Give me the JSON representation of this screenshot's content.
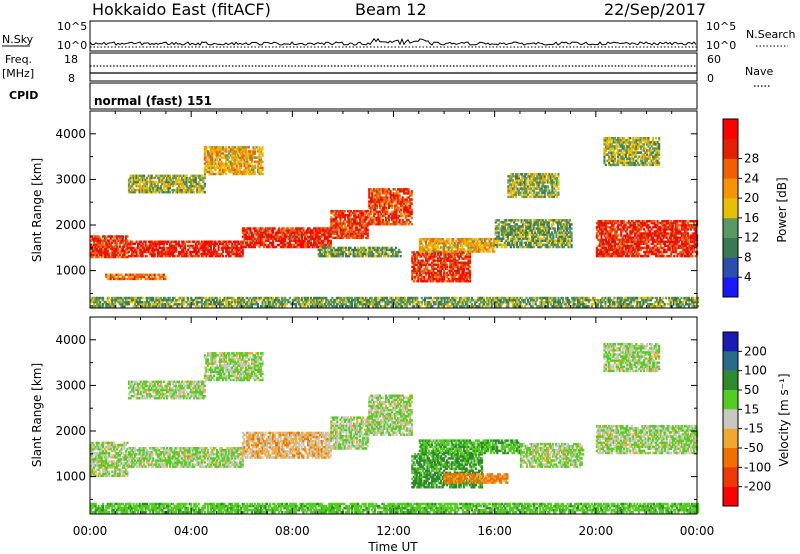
{
  "header": {
    "station": "Hokkaido East (fitACF)",
    "beam": "Beam 12",
    "date": "22/Sep/2017"
  },
  "top_panels": {
    "nsky_label": "N.Sky",
    "nsearch_label": "N.Search",
    "noise_ticks_left": [
      "10^5",
      "10^0"
    ],
    "noise_ticks_right": [
      "10^5",
      "10^0"
    ],
    "freq_label": "Freq.",
    "freq_unit": "[MHz]",
    "freq_ticks": [
      "18",
      "8"
    ],
    "nave_label": "Nave",
    "nave_ticks": [
      "60",
      "0"
    ],
    "cpid_label": "CPID",
    "cpid_value": "normal (fast) 151"
  },
  "colors": {
    "power": [
      "#1818ff",
      "#2a4fb0",
      "#3b7a50",
      "#5a9a62",
      "#e8c000",
      "#f59300",
      "#f06000",
      "#e42000",
      "#ff0000"
    ],
    "velocity": [
      "#1a1ab5",
      "#2a6a8a",
      "#2d8a2d",
      "#55cc22",
      "#c8c8c0",
      "#f0a830",
      "#f07000",
      "#f03800",
      "#ff0000"
    ]
  },
  "chart_data": [
    {
      "type": "heatmap",
      "name": "Power",
      "xlabel": "",
      "ylabel": "Slant Range [km]",
      "x_ticks": [
        "00:00",
        "04:00",
        "08:00",
        "12:00",
        "16:00",
        "20:00",
        "00:00"
      ],
      "x_range_hours": [
        0,
        24
      ],
      "ylim": [
        180,
        4500
      ],
      "y_ticks": [
        1000,
        2000,
        3000,
        4000
      ],
      "colorbar_label": "Power [dB]",
      "colorbar_ticks": [
        "4",
        "8",
        "12",
        "16",
        "20",
        "24",
        "28"
      ],
      "colorbar_range": [
        0,
        32
      ],
      "regions": [
        {
          "t0": 0.0,
          "t1": 1.5,
          "r0": 1280,
          "r1": 1750,
          "value": 26
        },
        {
          "t0": 0.6,
          "t1": 3.0,
          "r0": 800,
          "r1": 900,
          "value": 22
        },
        {
          "t0": 1.5,
          "t1": 6.0,
          "r0": 1300,
          "r1": 1650,
          "value": 28
        },
        {
          "t0": 6.0,
          "t1": 9.5,
          "r0": 1500,
          "r1": 1950,
          "value": 27
        },
        {
          "t0": 9.5,
          "t1": 11.0,
          "r0": 1700,
          "r1": 2300,
          "value": 26
        },
        {
          "t0": 11.0,
          "t1": 12.7,
          "r0": 2000,
          "r1": 2800,
          "value": 25
        },
        {
          "t0": 1.5,
          "t1": 4.5,
          "r0": 2700,
          "r1": 3100,
          "value": 14
        },
        {
          "t0": 4.5,
          "t1": 6.8,
          "r0": 3100,
          "r1": 3700,
          "value": 18
        },
        {
          "t0": 9.0,
          "t1": 12.3,
          "r0": 1300,
          "r1": 1500,
          "value": 12
        },
        {
          "t0": 12.7,
          "t1": 15.0,
          "r0": 750,
          "r1": 1400,
          "value": 26
        },
        {
          "t0": 13.0,
          "t1": 16.0,
          "r0": 1400,
          "r1": 1700,
          "value": 18
        },
        {
          "t0": 16.0,
          "t1": 19.0,
          "r0": 1500,
          "r1": 2100,
          "value": 12
        },
        {
          "t0": 16.5,
          "t1": 18.5,
          "r0": 2600,
          "r1": 3100,
          "value": 14
        },
        {
          "t0": 20.0,
          "t1": 24.0,
          "r0": 1300,
          "r1": 2100,
          "value": 27
        },
        {
          "t0": 20.3,
          "t1": 22.5,
          "r0": 3300,
          "r1": 3900,
          "value": 14
        },
        {
          "t0": 0.0,
          "t1": 24.0,
          "r0": 200,
          "r1": 420,
          "value": 12
        }
      ]
    },
    {
      "type": "heatmap",
      "name": "Velocity",
      "xlabel": "Time UT",
      "ylabel": "Slant Range [km]",
      "x_ticks": [
        "00:00",
        "04:00",
        "08:00",
        "12:00",
        "16:00",
        "20:00",
        "00:00"
      ],
      "x_range_hours": [
        0,
        24
      ],
      "ylim": [
        180,
        4500
      ],
      "y_ticks": [
        1000,
        2000,
        3000,
        4000
      ],
      "colorbar_label": "Velocity [m s⁻¹]",
      "colorbar_ticks": [
        "200",
        "100",
        "50",
        "15",
        "-15",
        "-50",
        "-100",
        "-200"
      ],
      "regions": [
        {
          "t0": 0.0,
          "t1": 1.5,
          "r0": 1000,
          "r1": 1750,
          "value": 0
        },
        {
          "t0": 1.5,
          "t1": 6.0,
          "r0": 1200,
          "r1": 1650,
          "value": 0
        },
        {
          "t0": 6.0,
          "t1": 9.5,
          "r0": 1400,
          "r1": 1950,
          "value": -20
        },
        {
          "t0": 9.5,
          "t1": 11.0,
          "r0": 1600,
          "r1": 2300,
          "value": 0
        },
        {
          "t0": 11.0,
          "t1": 12.7,
          "r0": 1900,
          "r1": 2800,
          "value": 0
        },
        {
          "t0": 1.5,
          "t1": 4.5,
          "r0": 2700,
          "r1": 3100,
          "value": 0
        },
        {
          "t0": 4.5,
          "t1": 6.8,
          "r0": 3100,
          "r1": 3700,
          "value": 0
        },
        {
          "t0": 12.7,
          "t1": 15.5,
          "r0": 750,
          "r1": 1500,
          "value": 40
        },
        {
          "t0": 13.0,
          "t1": 17.0,
          "r0": 1500,
          "r1": 1800,
          "value": 30
        },
        {
          "t0": 14.0,
          "t1": 16.5,
          "r0": 850,
          "r1": 1050,
          "value": -40
        },
        {
          "t0": 17.0,
          "t1": 19.5,
          "r0": 1200,
          "r1": 1700,
          "value": 0
        },
        {
          "t0": 20.0,
          "t1": 24.0,
          "r0": 1500,
          "r1": 2100,
          "value": 0
        },
        {
          "t0": 20.3,
          "t1": 22.5,
          "r0": 3300,
          "r1": 3900,
          "value": 0
        },
        {
          "t0": 0.0,
          "t1": 24.0,
          "r0": 200,
          "r1": 420,
          "value": 20
        }
      ]
    }
  ]
}
